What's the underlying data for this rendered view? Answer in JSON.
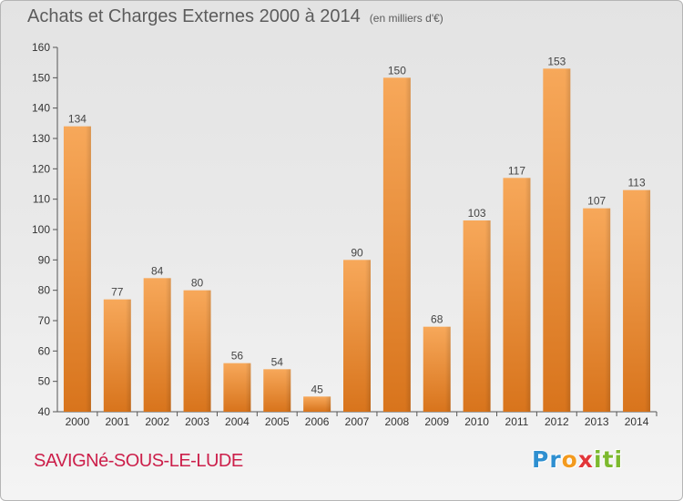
{
  "chart_data": {
    "type": "bar",
    "title": "Achats et Charges Externes 2000 à 2014",
    "subtitle": "(en milliers d'€)",
    "categories": [
      "2000",
      "2001",
      "2002",
      "2003",
      "2004",
      "2005",
      "2006",
      "2007",
      "2008",
      "2009",
      "2010",
      "2011",
      "2012",
      "2013",
      "2014"
    ],
    "values": [
      134,
      77,
      84,
      80,
      56,
      54,
      45,
      90,
      150,
      68,
      103,
      117,
      153,
      107,
      113
    ],
    "ylim": [
      40,
      160
    ],
    "yticks": [
      40,
      50,
      60,
      70,
      80,
      90,
      100,
      110,
      120,
      130,
      140,
      150,
      160
    ],
    "grid": false,
    "bar_color": "#f0922f"
  },
  "footer": {
    "commune": "SAVIGNé-SOUS-LE-LUDE",
    "logo_letters": [
      {
        "ch": "P",
        "color": "#2e8fd0"
      },
      {
        "ch": "r",
        "color": "#2e8fd0"
      },
      {
        "ch": "o",
        "color": "#f39a1e"
      },
      {
        "ch": "x",
        "color": "#e2363a"
      },
      {
        "ch": "i",
        "color": "#7cb92e"
      },
      {
        "ch": "t",
        "color": "#7cb92e"
      },
      {
        "ch": "i",
        "color": "#7cb92e"
      }
    ]
  }
}
